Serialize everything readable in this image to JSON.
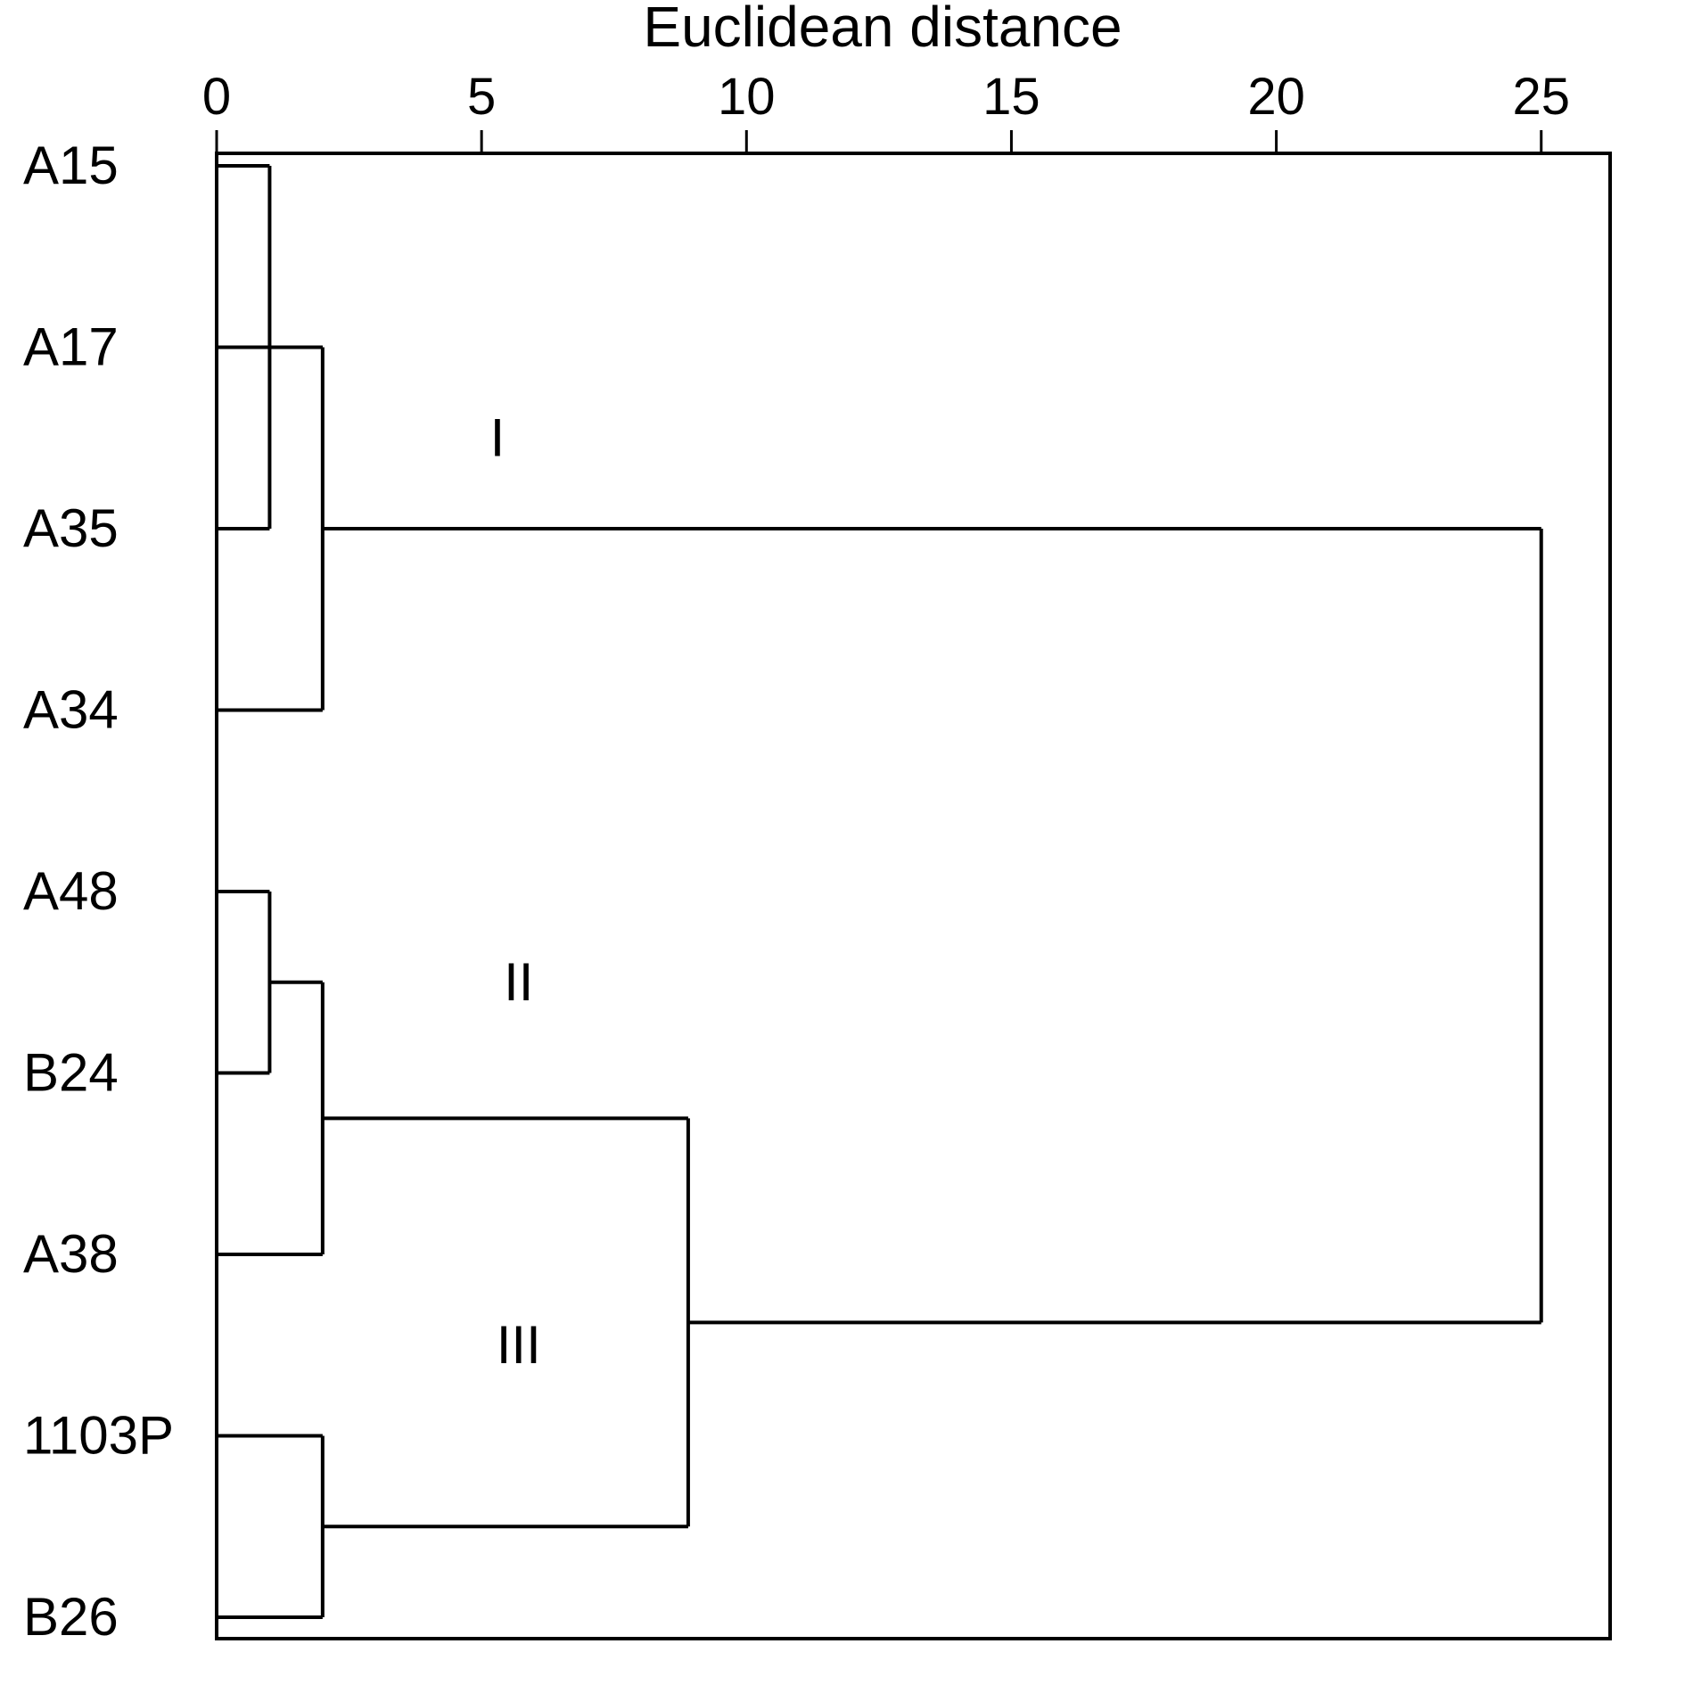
{
  "chart_data": {
    "type": "dendrogram",
    "xlabel": "Euclidean distance",
    "x_ticks": [
      0,
      5,
      10,
      15,
      20,
      25
    ],
    "xlim": [
      0,
      26.3
    ],
    "leaves": [
      "A15",
      "A17",
      "A35",
      "A34",
      "A48",
      "B24",
      "A38",
      "1103P",
      "B26"
    ],
    "merges": [
      {
        "id": "m1",
        "children": [
          "A15",
          "A35"
        ],
        "height": 1.0
      },
      {
        "id": "m2",
        "children": [
          "A17",
          "m1",
          "A34"
        ],
        "height": 2.0
      },
      {
        "id": "m3",
        "children": [
          "A48",
          "B24"
        ],
        "height": 1.0
      },
      {
        "id": "m4",
        "children": [
          "m3",
          "A38"
        ],
        "height": 2.0
      },
      {
        "id": "m5",
        "children": [
          "1103P",
          "B26"
        ],
        "height": 2.0
      },
      {
        "id": "m6",
        "children": [
          "m4",
          "m5"
        ],
        "height": 8.9
      },
      {
        "id": "m7",
        "children": [
          "m2",
          "m6"
        ],
        "height": 25.0
      }
    ],
    "cluster_labels": [
      {
        "text": "I",
        "distance": 5.3,
        "between_leaves": [
          1,
          2
        ]
      },
      {
        "text": "II",
        "distance": 5.7,
        "between_leaves": [
          4,
          5
        ]
      },
      {
        "text": "III",
        "distance": 5.7,
        "between_leaves": [
          6,
          7
        ]
      }
    ]
  }
}
